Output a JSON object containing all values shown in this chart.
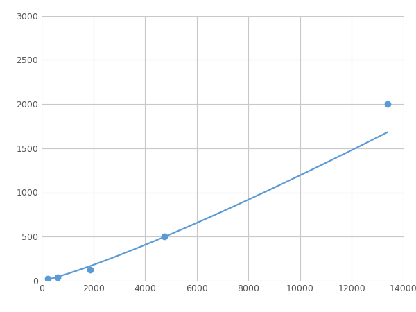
{
  "x_points": [
    250,
    625,
    1875,
    4750,
    13375
  ],
  "y_points": [
    20,
    40,
    125,
    500,
    2000
  ],
  "line_color": "#5b9bd5",
  "marker_color": "#5b9bd5",
  "marker_size": 6,
  "line_width": 1.6,
  "xlim": [
    0,
    14000
  ],
  "ylim": [
    0,
    3000
  ],
  "xticks": [
    0,
    2000,
    4000,
    6000,
    8000,
    10000,
    12000,
    14000
  ],
  "yticks": [
    0,
    500,
    1000,
    1500,
    2000,
    2500,
    3000
  ],
  "grid_color": "#c8c8c8",
  "background_color": "#ffffff",
  "plot_bg_color": "#ffffff"
}
